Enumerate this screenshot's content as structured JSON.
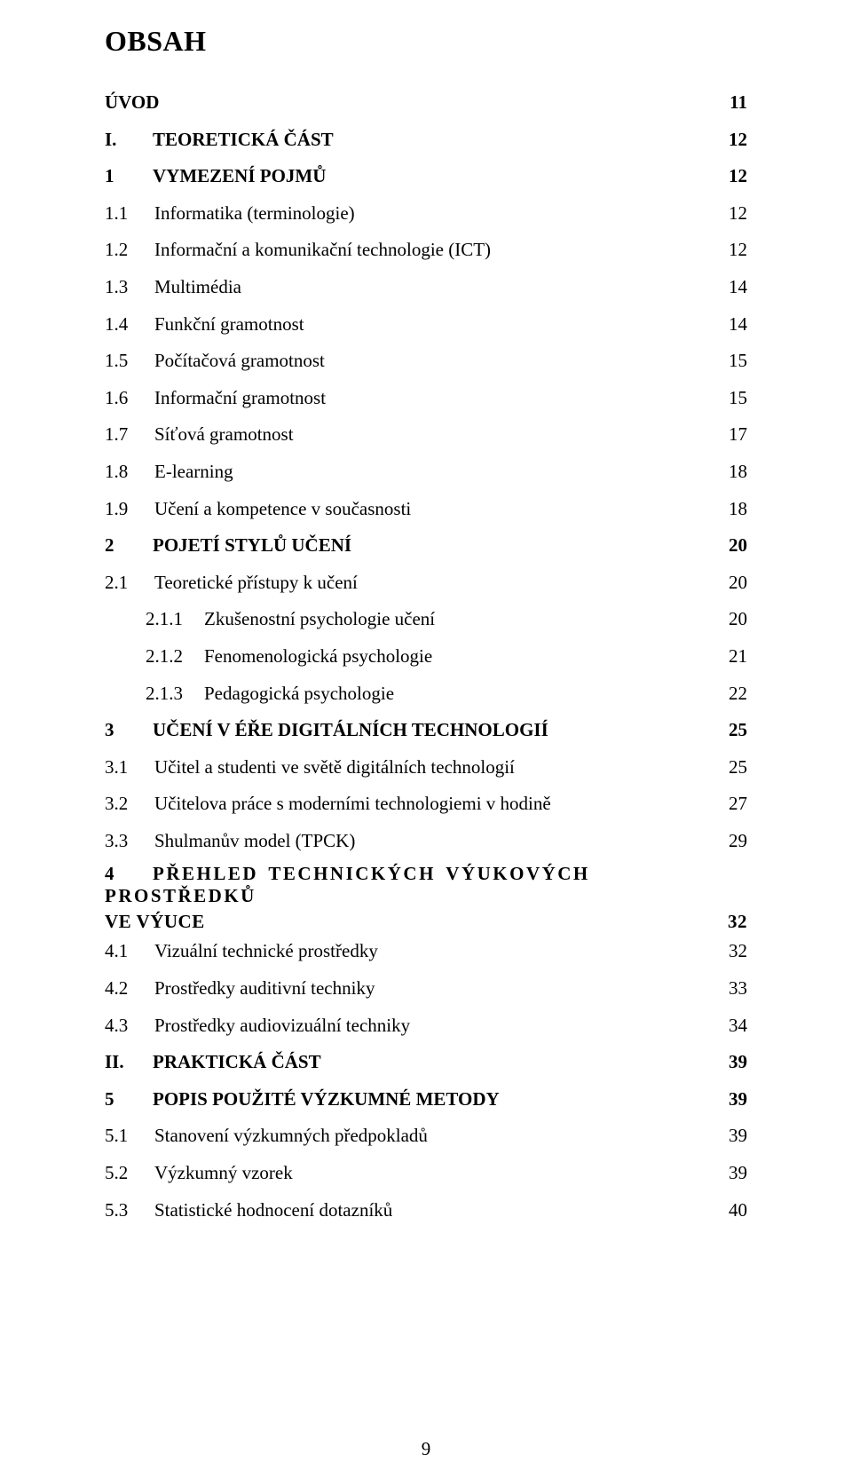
{
  "doc_title": "OBSAH",
  "page_number": "9",
  "toc": [
    {
      "level": 1,
      "num": "",
      "txt": "ÚVOD",
      "page": "11"
    },
    {
      "level": 1,
      "num": "I.",
      "txt": "TEORETICKÁ ČÁST",
      "page": "12"
    },
    {
      "level": 1,
      "num": "1",
      "txt": "VYMEZENÍ POJMŮ",
      "page": "12"
    },
    {
      "level": 2,
      "num": "1.1",
      "txt": "Informatika (terminologie)",
      "page": "12"
    },
    {
      "level": 2,
      "num": "1.2",
      "txt": "Informační a komunikační technologie (ICT)",
      "page": "12"
    },
    {
      "level": 2,
      "num": "1.3",
      "txt": "Multimédia",
      "page": "14"
    },
    {
      "level": 2,
      "num": "1.4",
      "txt": "Funkční gramotnost",
      "page": "14"
    },
    {
      "level": 2,
      "num": "1.5",
      "txt": "Počítačová gramotnost",
      "page": "15"
    },
    {
      "level": 2,
      "num": "1.6",
      "txt": "Informační gramotnost",
      "page": "15"
    },
    {
      "level": 2,
      "num": "1.7",
      "txt": "Síťová gramotnost",
      "page": "17"
    },
    {
      "level": 2,
      "num": "1.8",
      "txt": "E-learning",
      "page": "18"
    },
    {
      "level": 2,
      "num": "1.9",
      "txt": "Učení a kompetence v současnosti",
      "page": "18"
    },
    {
      "level": 1,
      "num": "2",
      "txt": "POJETÍ STYLŮ UČENÍ",
      "page": "20"
    },
    {
      "level": 2,
      "num": "2.1",
      "txt": "Teoretické přístupy k učení",
      "page": "20"
    },
    {
      "level": 3,
      "num": "2.1.1",
      "txt": "Zkušenostní psychologie učení",
      "page": "20"
    },
    {
      "level": 3,
      "num": "2.1.2",
      "txt": "Fenomenologická psychologie",
      "page": "21"
    },
    {
      "level": 3,
      "num": "2.1.3",
      "txt": "Pedagogická psychologie",
      "page": "22"
    },
    {
      "level": 1,
      "num": "3",
      "txt": "UČENÍ V ÉŘE DIGITÁLNÍCH TECHNOLOGIÍ",
      "page": "25"
    },
    {
      "level": 2,
      "num": "3.1",
      "txt": "Učitel a studenti ve světě digitálních technologií",
      "page": "25"
    },
    {
      "level": 2,
      "num": "3.2",
      "txt": "Učitelova práce s moderními technologiemi v hodině",
      "page": "27"
    },
    {
      "level": 2,
      "num": "3.3",
      "txt": "Shulmanův model (TPCK)",
      "page": "29"
    },
    {
      "level": 1,
      "num": "4",
      "txt_line1": "PŘEHLED TECHNICKÝCH VÝUKOVÝCH PROSTŘEDKŮ",
      "txt_line2": "VE VÝUCE",
      "page": "32",
      "multiline": true
    },
    {
      "level": 2,
      "num": "4.1",
      "txt": "Vizuální technické prostředky",
      "page": "32"
    },
    {
      "level": 2,
      "num": "4.2",
      "txt": "Prostředky auditivní techniky",
      "page": "33"
    },
    {
      "level": 2,
      "num": "4.3",
      "txt": "Prostředky audiovizuální techniky",
      "page": "34"
    },
    {
      "level": 1,
      "num": "II.",
      "txt": "PRAKTICKÁ ČÁST",
      "page": "39"
    },
    {
      "level": 1,
      "num": "5",
      "txt": "POPIS POUŽITÉ VÝZKUMNÉ METODY",
      "page": "39"
    },
    {
      "level": 2,
      "num": "5.1",
      "txt": "Stanovení výzkumných předpokladů",
      "page": "39"
    },
    {
      "level": 2,
      "num": "5.2",
      "txt": "Výzkumný vzorek",
      "page": "39"
    },
    {
      "level": 2,
      "num": "5.3",
      "txt": "Statistické hodnocení dotazníků",
      "page": "40"
    }
  ]
}
